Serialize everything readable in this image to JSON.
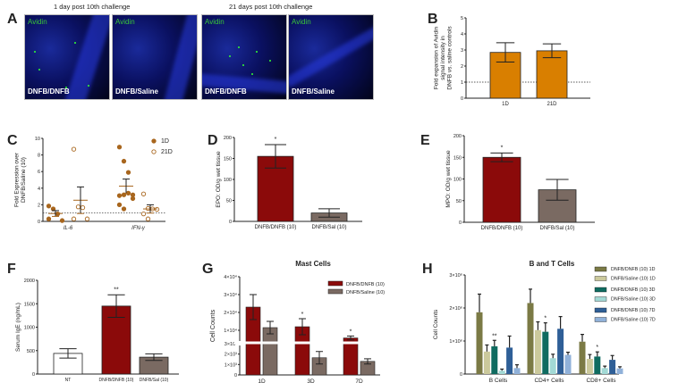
{
  "panel_labels": [
    "A",
    "B",
    "C",
    "D",
    "E",
    "F",
    "G",
    "H"
  ],
  "panel_a": {
    "titles": [
      "1 day post 10th challenge",
      "21 days post 10th challenge"
    ],
    "stain_label": "Avidin",
    "images": [
      "DNFB/DNFB",
      "DNFB/Saline",
      "DNFB/DNFB",
      "DNFB/Saline"
    ]
  },
  "chart_data": [
    {
      "id": "B",
      "type": "bar",
      "ylabel": [
        "Fold expansion of Avidin",
        "signal intensity in",
        "DNFB vs. saline controls"
      ],
      "categories": [
        "1D",
        "21D"
      ],
      "values": [
        2.85,
        2.95
      ],
      "errors": [
        0.6,
        0.43
      ],
      "ylim": [
        0,
        5
      ],
      "yticks": [
        "0",
        "1",
        "2",
        "3",
        "4",
        "5"
      ],
      "reference_line": 1,
      "color": "#d97f00"
    },
    {
      "id": "C",
      "type": "scatter",
      "ylabel": [
        "Fold Expression over",
        "DNFB/Saline (10)"
      ],
      "categories": [
        "IL-6",
        "IFN-γ"
      ],
      "ylim": [
        0,
        10
      ],
      "yticks": [
        "0",
        "2",
        "4",
        "6",
        "8",
        "10"
      ],
      "reference_line": 1,
      "legend": [
        "1D",
        "21D"
      ],
      "color": "#a8661e",
      "series": [
        {
          "name": "1D",
          "points": [
            [
              1.85,
              1.5,
              0.9,
              0.1,
              0.3
            ],
            [
              8.95,
              7.25,
              5.9,
              3.2,
              3.1,
              3.2,
              3.4,
              2.75,
              2.0,
              1.5
            ]
          ],
          "mean": [
            0.95,
            4.25
          ],
          "sem": [
            0.35,
            0.85
          ]
        },
        {
          "name": "21D",
          "points": [
            [
              8.7,
              1.75,
              1.65,
              0.3,
              0.3
            ],
            [
              3.3,
              1.55,
              1.5,
              1.45,
              0.9,
              0.3
            ]
          ],
          "mean": [
            2.55,
            1.5
          ],
          "sem": [
            1.6,
            0.5
          ]
        }
      ]
    },
    {
      "id": "D",
      "type": "bar",
      "ylabel": [
        "EPO: OD/g wet tissue"
      ],
      "categories": [
        "DNFB/DNFB (10)",
        "DNFB/Sal (10)"
      ],
      "values": [
        155,
        20
      ],
      "errors": [
        28,
        10
      ],
      "significance": [
        "*",
        ""
      ],
      "ylim": [
        0,
        200
      ],
      "yticks": [
        "0",
        "50",
        "100",
        "150",
        "200"
      ],
      "colors": [
        "#8b0a0a",
        "#7a6a62"
      ]
    },
    {
      "id": "E",
      "type": "bar",
      "ylabel": [
        "MPO: OD/g wet tissue"
      ],
      "categories": [
        "DNFB/DNFB (10)",
        "DNFB/Sal (10)"
      ],
      "values": [
        150,
        75
      ],
      "errors": [
        10,
        24
      ],
      "significance": [
        "*",
        ""
      ],
      "ylim": [
        0,
        200
      ],
      "yticks": [
        "0",
        "50",
        "100",
        "150",
        "200"
      ],
      "colors": [
        "#8b0a0a",
        "#7a6a62"
      ]
    },
    {
      "id": "F",
      "type": "bar",
      "ylabel": [
        "Serum IgE (ng/mL)"
      ],
      "categories": [
        "NT",
        "DNFB/DNFB (10)",
        "DNFB/Sal (10)"
      ],
      "values": [
        440,
        1450,
        360
      ],
      "errors": [
        100,
        240,
        70
      ],
      "significance": [
        "",
        "**",
        ""
      ],
      "ylim": [
        0,
        2000
      ],
      "yticks": [
        "0",
        "500",
        "1000",
        "1500",
        "2000"
      ],
      "colors": [
        "#ffffff",
        "#8b0a0a",
        "#7a6a62"
      ]
    },
    {
      "id": "G",
      "type": "bar",
      "title": "Mast Cells",
      "ylabel": [
        "Cell Counts"
      ],
      "categories": [
        "1D",
        "3D",
        "7D"
      ],
      "yticks_lower": [
        "0",
        "1×10³",
        "2×10³",
        "3×10³"
      ],
      "yticks_upper": [
        "1×10⁴",
        "2×10⁴",
        "3×10⁴",
        "4×10⁴"
      ],
      "axis_break": 3000,
      "series": [
        {
          "name": "DNFB/DNFB (10)",
          "color": "#8b0a0a",
          "values": [
            23000,
            12000,
            5700
          ],
          "errors": [
            7000,
            4500,
            1100
          ],
          "significance": [
            "",
            "*",
            "*"
          ]
        },
        {
          "name": "DNFB/Saline (10)",
          "color": "#7a6a62",
          "values": [
            11500,
            1650,
            1300
          ],
          "errors": [
            3500,
            600,
            250
          ]
        }
      ],
      "legend_position": "top-right"
    },
    {
      "id": "H",
      "type": "bar",
      "title": "B and T Cells",
      "ylabel": [
        "Cell Counts"
      ],
      "categories": [
        "B Cells",
        "CD4+ Cells",
        "CD8+ Cells"
      ],
      "ylim": [
        0,
        3000000
      ],
      "yticks": [
        "0",
        "1×10⁶",
        "2×10⁶",
        "3×10⁶"
      ],
      "series": [
        {
          "name": "DNFB/DNFB (10) 1D",
          "color": "#7b7a45",
          "values": [
            1870000,
            2150000,
            980000
          ],
          "errors": [
            550000,
            420000,
            220000
          ]
        },
        {
          "name": "DNFB/Saline (10) 1D",
          "color": "#cbc99c",
          "values": [
            680000,
            1330000,
            460000
          ],
          "errors": [
            200000,
            250000,
            130000
          ]
        },
        {
          "name": "DNFB/DNFB (10) 3D",
          "color": "#0f6b60",
          "values": [
            840000,
            1280000,
            530000
          ],
          "errors": [
            180000,
            270000,
            140000
          ],
          "significance": [
            "**",
            "*",
            "*"
          ]
        },
        {
          "name": "DNFB/Saline (10) 3D",
          "color": "#a2d9d5",
          "values": [
            100000,
            480000,
            180000
          ],
          "errors": [
            50000,
            120000,
            60000
          ]
        },
        {
          "name": "DNFB/DNFB (10) 7D",
          "color": "#2f5f97",
          "values": [
            800000,
            1370000,
            430000
          ],
          "errors": [
            350000,
            370000,
            130000
          ]
        },
        {
          "name": "DNFB/Saline (10) 7D",
          "color": "#90b1d9",
          "values": [
            180000,
            580000,
            170000
          ],
          "errors": [
            100000,
            80000,
            50000
          ]
        }
      ],
      "legend_position": "right"
    }
  ]
}
